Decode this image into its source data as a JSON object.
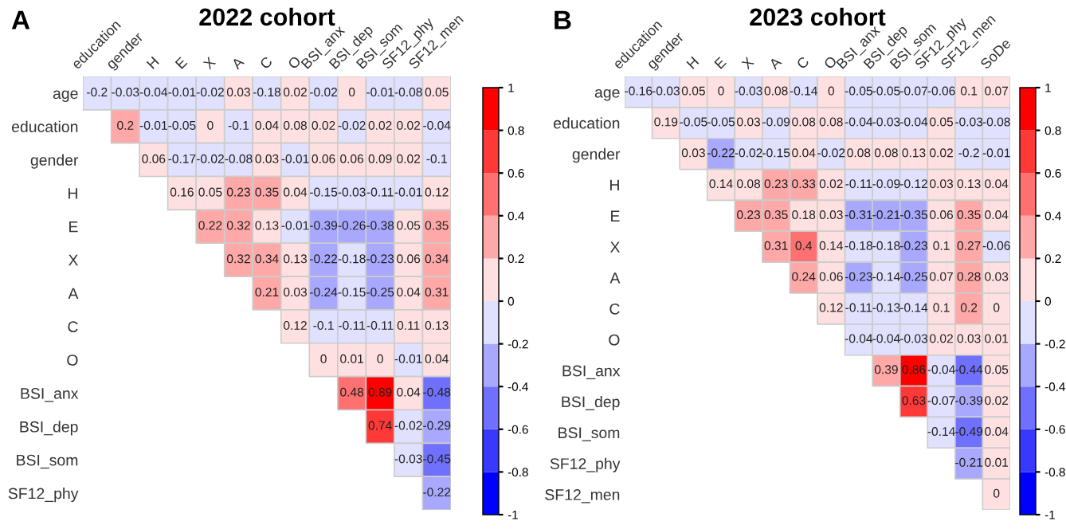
{
  "chart_data": [
    {
      "type": "heatmap",
      "title": "2022 cohort",
      "annotations": [
        "A"
      ],
      "categories": [
        "education",
        "gender",
        "H",
        "E",
        "X",
        "A",
        "C",
        "O",
        "BSI_anx",
        "BSI_dep",
        "BSI_som",
        "SF12_phy",
        "SF12_men"
      ],
      "y_categories": [
        "age",
        "education",
        "gender",
        "H",
        "E",
        "X",
        "A",
        "C",
        "O",
        "BSI_anx",
        "BSI_dep",
        "BSI_som",
        "SF12_phy"
      ],
      "cells": [
        [
          -0.2,
          -0.03,
          -0.04,
          -0.01,
          -0.02,
          0.03,
          -0.18,
          0.02,
          -0.02,
          0,
          -0.01,
          -0.08,
          0.05
        ],
        [
          null,
          0.2,
          -0.01,
          -0.05,
          0,
          -0.1,
          0.04,
          0.08,
          0.02,
          -0.02,
          0.02,
          0.02,
          -0.04
        ],
        [
          null,
          null,
          0.06,
          -0.17,
          -0.02,
          -0.08,
          0.03,
          -0.01,
          0.06,
          0.06,
          0.09,
          0.02,
          -0.1
        ],
        [
          null,
          null,
          null,
          0.16,
          0.05,
          0.23,
          0.35,
          0.04,
          -0.15,
          -0.03,
          -0.11,
          -0.01,
          0.12
        ],
        [
          null,
          null,
          null,
          null,
          0.22,
          0.32,
          0.13,
          -0.01,
          -0.39,
          -0.26,
          -0.38,
          0.05,
          0.35
        ],
        [
          null,
          null,
          null,
          null,
          null,
          0.32,
          0.34,
          0.13,
          -0.22,
          -0.18,
          -0.23,
          0.06,
          0.34
        ],
        [
          null,
          null,
          null,
          null,
          null,
          null,
          0.21,
          0.03,
          -0.24,
          -0.15,
          -0.25,
          0.04,
          0.31
        ],
        [
          null,
          null,
          null,
          null,
          null,
          null,
          null,
          0.12,
          -0.1,
          -0.11,
          -0.11,
          0.11,
          0.13
        ],
        [
          null,
          null,
          null,
          null,
          null,
          null,
          null,
          null,
          0,
          0.01,
          0,
          -0.01,
          0.04
        ],
        [
          null,
          null,
          null,
          null,
          null,
          null,
          null,
          null,
          null,
          0.48,
          0.89,
          0.04,
          -0.48
        ],
        [
          null,
          null,
          null,
          null,
          null,
          null,
          null,
          null,
          null,
          null,
          0.74,
          -0.02,
          -0.29
        ],
        [
          null,
          null,
          null,
          null,
          null,
          null,
          null,
          null,
          null,
          null,
          null,
          -0.03,
          -0.45
        ],
        [
          null,
          null,
          null,
          null,
          null,
          null,
          null,
          null,
          null,
          null,
          null,
          null,
          -0.22
        ]
      ],
      "clim": [
        -1,
        1
      ],
      "cticks": [
        -1,
        -0.8,
        -0.6,
        -0.4,
        -0.2,
        0,
        0.2,
        0.4,
        0.6,
        0.8,
        1
      ],
      "data_labels": true
    },
    {
      "type": "heatmap",
      "title": "2023 cohort",
      "annotations": [
        "B"
      ],
      "categories": [
        "education",
        "gender",
        "H",
        "E",
        "X",
        "A",
        "C",
        "O",
        "BSI_anx",
        "BSI_dep",
        "BSI_som",
        "SF12_phy",
        "SF12_men",
        "SoDe"
      ],
      "y_categories": [
        "age",
        "education",
        "gender",
        "H",
        "E",
        "X",
        "A",
        "C",
        "O",
        "BSI_anx",
        "BSI_dep",
        "BSI_som",
        "SF12_phy",
        "SF12_men"
      ],
      "cells": [
        [
          -0.16,
          -0.03,
          0.05,
          0,
          -0.03,
          0.08,
          -0.14,
          0,
          -0.05,
          -0.05,
          -0.07,
          -0.06,
          0.1,
          0.07
        ],
        [
          null,
          0.19,
          -0.05,
          -0.05,
          0.03,
          -0.09,
          0.08,
          0.08,
          -0.04,
          -0.03,
          -0.04,
          0.05,
          -0.03,
          -0.08
        ],
        [
          null,
          null,
          0.03,
          -0.22,
          -0.02,
          -0.15,
          0.04,
          -0.02,
          0.08,
          0.08,
          0.13,
          0.02,
          -0.2,
          -0.01
        ],
        [
          null,
          null,
          null,
          0.14,
          0.08,
          0.23,
          0.33,
          0.02,
          -0.11,
          -0.09,
          -0.12,
          0.03,
          0.13,
          0.04
        ],
        [
          null,
          null,
          null,
          null,
          0.23,
          0.35,
          0.18,
          0.03,
          -0.31,
          -0.21,
          -0.35,
          0.06,
          0.35,
          0.04
        ],
        [
          null,
          null,
          null,
          null,
          null,
          0.31,
          0.4,
          0.14,
          -0.18,
          -0.18,
          -0.23,
          0.1,
          0.27,
          -0.06
        ],
        [
          null,
          null,
          null,
          null,
          null,
          null,
          0.24,
          0.06,
          -0.23,
          -0.14,
          -0.25,
          0.07,
          0.28,
          0.03
        ],
        [
          null,
          null,
          null,
          null,
          null,
          null,
          null,
          0.12,
          -0.11,
          -0.13,
          -0.14,
          0.1,
          0.2,
          0
        ],
        [
          null,
          null,
          null,
          null,
          null,
          null,
          null,
          null,
          -0.04,
          -0.04,
          -0.03,
          0.02,
          0.03,
          0.01
        ],
        [
          null,
          null,
          null,
          null,
          null,
          null,
          null,
          null,
          null,
          0.39,
          0.86,
          -0.04,
          -0.44,
          0.05
        ],
        [
          null,
          null,
          null,
          null,
          null,
          null,
          null,
          null,
          null,
          null,
          0.63,
          -0.07,
          -0.39,
          0.02
        ],
        [
          null,
          null,
          null,
          null,
          null,
          null,
          null,
          null,
          null,
          null,
          null,
          -0.14,
          -0.49,
          0.04
        ],
        [
          null,
          null,
          null,
          null,
          null,
          null,
          null,
          null,
          null,
          null,
          null,
          null,
          -0.21,
          0.01
        ],
        [
          null,
          null,
          null,
          null,
          null,
          null,
          null,
          null,
          null,
          null,
          null,
          null,
          null,
          0
        ]
      ],
      "clim": [
        -1,
        1
      ],
      "cticks": [
        -1,
        -0.8,
        -0.6,
        -0.4,
        -0.2,
        0,
        0.2,
        0.4,
        0.6,
        0.8,
        1
      ],
      "data_labels": true
    }
  ]
}
